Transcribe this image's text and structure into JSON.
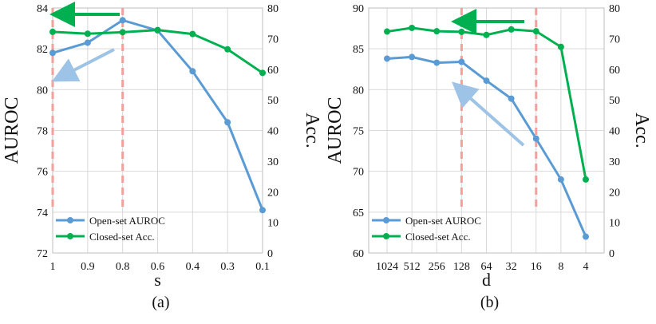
{
  "colors": {
    "open_set": "#5b9bd5",
    "closed_set": "#00b050",
    "dashed": "#f4a09c",
    "arrow_green": "#00b050",
    "arrow_blue": "#9dc3e6"
  },
  "chart_data": [
    {
      "type": "line",
      "caption": "(a)",
      "xlabel": "s",
      "ylabel_left": "AUROC",
      "ylabel_right": "Acc.",
      "categories": [
        "1",
        "0.9",
        "0.8",
        "0.6",
        "0.4",
        "0.3",
        "0.1"
      ],
      "ylim_left": [
        72,
        84
      ],
      "yticks_left": [
        "72",
        "74",
        "76",
        "78",
        "80",
        "82",
        "84"
      ],
      "ylim_right": [
        0,
        80
      ],
      "yticks_right": [
        "0",
        "10",
        "20",
        "30",
        "40",
        "50",
        "60",
        "70",
        "80"
      ],
      "series": [
        {
          "name": "Open-set AUROC",
          "axis": "left",
          "values": [
            81.8,
            82.3,
            83.4,
            82.9,
            80.9,
            78.4,
            74.1
          ]
        },
        {
          "name": "Closed-set Acc.",
          "axis": "right",
          "values": [
            72.2,
            71.6,
            72.1,
            72.8,
            71.5,
            66.5,
            58.8
          ]
        }
      ],
      "dashed_markers_x_index": [
        0,
        2
      ],
      "legend": [
        "Open-set AUROC",
        "Closed-set Acc."
      ]
    },
    {
      "type": "line",
      "caption": "(b)",
      "xlabel": "d",
      "ylabel_left": "AUROC",
      "ylabel_right": "Acc.",
      "categories": [
        "1024",
        "512",
        "256",
        "128",
        "64",
        "32",
        "16",
        "8",
        "4"
      ],
      "ylim_left": [
        60,
        90
      ],
      "yticks_left": [
        "60",
        "65",
        "70",
        "75",
        "80",
        "85",
        "90"
      ],
      "ylim_right": [
        0,
        80
      ],
      "yticks_right": [
        "0",
        "10",
        "20",
        "30",
        "40",
        "50",
        "60",
        "70",
        "80"
      ],
      "series": [
        {
          "name": "Open-set AUROC",
          "axis": "left",
          "values": [
            83.8,
            84.0,
            83.3,
            83.4,
            81.1,
            78.9,
            74.0,
            69.0,
            62.0
          ]
        },
        {
          "name": "Closed-set Acc.",
          "axis": "right",
          "values": [
            72.3,
            73.5,
            72.4,
            72.2,
            71.2,
            73.0,
            72.4,
            67.3,
            24.0
          ]
        }
      ],
      "dashed_markers_x_index": [
        3,
        6
      ],
      "legend": [
        "Open-set AUROC",
        "Closed-set Acc."
      ]
    }
  ]
}
